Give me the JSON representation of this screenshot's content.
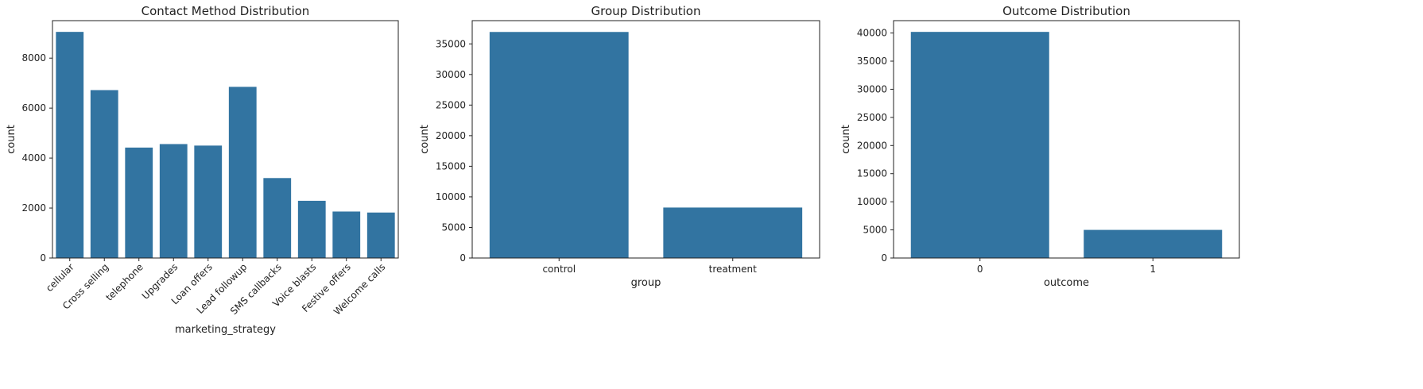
{
  "chart_data": [
    {
      "type": "bar",
      "title": "Contact Method Distribution",
      "xlabel": "marketing_strategy",
      "ylabel": "count",
      "categories": [
        "cellular",
        "Cross selling",
        "telephone",
        "Upgrades",
        "Loan offers",
        "Lead followup",
        "SMS callbacks",
        "Voice blasts",
        "Festive offers",
        "Welcome calls"
      ],
      "values": [
        9050,
        6720,
        4420,
        4560,
        4500,
        6850,
        3200,
        2290,
        1860,
        1820
      ],
      "ylim": [
        0,
        9500
      ],
      "yticks": [
        0,
        2000,
        4000,
        6000,
        8000
      ],
      "color": "#3274a1",
      "rotate_xticks": true
    },
    {
      "type": "bar",
      "title": "Group Distribution",
      "xlabel": "group",
      "ylabel": "count",
      "categories": [
        "control",
        "treatment"
      ],
      "values": [
        36950,
        8250
      ],
      "ylim": [
        0,
        38800
      ],
      "yticks": [
        0,
        5000,
        10000,
        15000,
        20000,
        25000,
        30000,
        35000
      ],
      "color": "#3274a1",
      "rotate_xticks": false
    },
    {
      "type": "bar",
      "title": "Outcome Distribution",
      "xlabel": "outcome",
      "ylabel": "count",
      "categories": [
        "0",
        "1"
      ],
      "values": [
        40200,
        5000
      ],
      "ylim": [
        0,
        42200
      ],
      "yticks": [
        0,
        5000,
        10000,
        15000,
        20000,
        25000,
        30000,
        35000,
        40000
      ],
      "color": "#3274a1",
      "rotate_xticks": false
    }
  ]
}
